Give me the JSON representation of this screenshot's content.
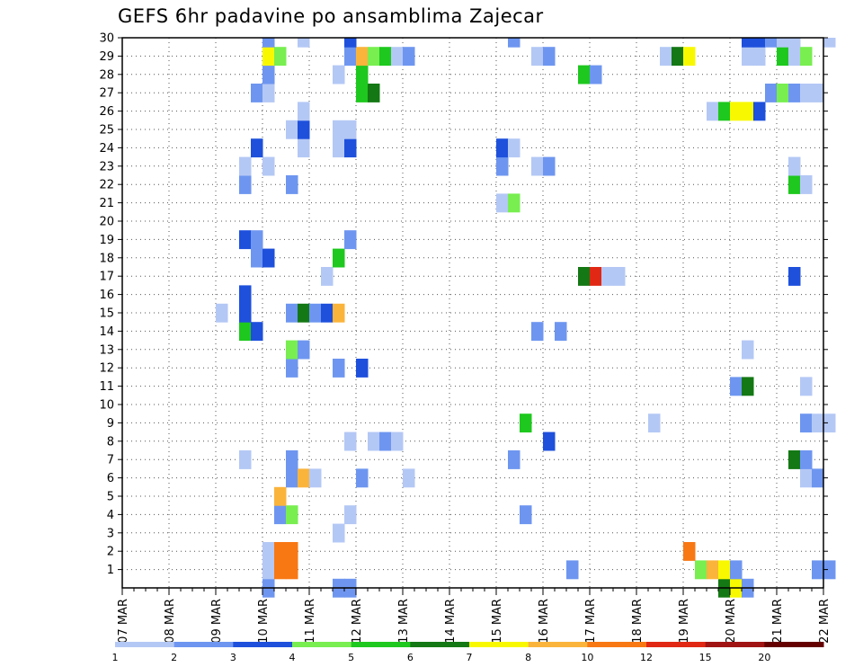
{
  "chart_data": {
    "type": "heatmap",
    "title": "GEFS 6hr padavine po ansamblima Zajecar",
    "x_tick_labels": [
      "07 MAR",
      "08 MAR",
      "09 MAR",
      "10 MAR",
      "11 MAR",
      "12 MAR",
      "13 MAR",
      "14 MAR",
      "15 MAR",
      "16 MAR",
      "17 MAR",
      "18 MAR",
      "19 MAR",
      "20 MAR",
      "21 MAR",
      "22 MAR"
    ],
    "x_range_steps": [
      0,
      60
    ],
    "y_tick_labels": [
      "1",
      "2",
      "3",
      "4",
      "5",
      "6",
      "7",
      "8",
      "9",
      "10",
      "11",
      "12",
      "13",
      "14",
      "15",
      "16",
      "17",
      "18",
      "19",
      "20",
      "21",
      "22",
      "23",
      "24",
      "25",
      "26",
      "27",
      "28",
      "29",
      "30"
    ],
    "y_range": [
      0,
      30
    ],
    "grid": "dotted",
    "colorbar": {
      "colors": [
        "#b4c8f5",
        "#6e96f0",
        "#1e50dc",
        "#78ee50",
        "#1ec81e",
        "#147814",
        "#f8f800",
        "#fab43c",
        "#f87814",
        "#e02814",
        "#a01414",
        "#640000"
      ],
      "labels": [
        "1",
        "2",
        "3",
        "4",
        "5",
        "6",
        "7",
        "8",
        "10",
        "12",
        "15",
        "20"
      ]
    },
    "cells": [
      [
        12,
        0,
        2
      ],
      [
        18,
        0,
        2
      ],
      [
        19,
        0,
        2
      ],
      [
        51,
        0,
        6
      ],
      [
        52,
        0,
        7
      ],
      [
        53,
        0,
        2
      ],
      [
        12,
        1,
        1
      ],
      [
        13,
        1,
        9
      ],
      [
        14,
        1,
        9
      ],
      [
        38,
        1,
        2
      ],
      [
        49,
        1,
        4
      ],
      [
        50,
        1,
        8
      ],
      [
        51,
        1,
        7
      ],
      [
        52,
        1,
        2
      ],
      [
        59,
        1,
        2
      ],
      [
        60,
        1,
        2
      ],
      [
        12,
        2,
        1
      ],
      [
        13,
        2,
        9
      ],
      [
        14,
        2,
        9
      ],
      [
        48,
        2,
        9
      ],
      [
        18,
        3,
        1
      ],
      [
        13,
        4,
        2
      ],
      [
        14,
        4,
        4
      ],
      [
        19,
        4,
        1
      ],
      [
        34,
        4,
        2
      ],
      [
        13,
        5,
        8
      ],
      [
        14,
        6,
        2
      ],
      [
        15,
        6,
        8
      ],
      [
        16,
        6,
        1
      ],
      [
        20,
        6,
        2
      ],
      [
        24,
        6,
        1
      ],
      [
        58,
        6,
        1
      ],
      [
        59,
        6,
        2
      ],
      [
        10,
        7,
        1
      ],
      [
        14,
        7,
        2
      ],
      [
        33,
        7,
        2
      ],
      [
        57,
        7,
        6
      ],
      [
        58,
        7,
        2
      ],
      [
        19,
        8,
        1
      ],
      [
        21,
        8,
        1
      ],
      [
        22,
        8,
        2
      ],
      [
        23,
        8,
        1
      ],
      [
        36,
        8,
        3
      ],
      [
        34,
        9,
        5
      ],
      [
        45,
        9,
        1
      ],
      [
        58,
        9,
        2
      ],
      [
        59,
        9,
        1
      ],
      [
        60,
        9,
        1
      ],
      [
        52,
        11,
        2
      ],
      [
        53,
        11,
        6
      ],
      [
        58,
        11,
        1
      ],
      [
        14,
        12,
        2
      ],
      [
        18,
        12,
        2
      ],
      [
        20,
        12,
        3
      ],
      [
        14,
        13,
        4
      ],
      [
        15,
        13,
        2
      ],
      [
        53,
        13,
        1
      ],
      [
        10,
        14,
        5
      ],
      [
        11,
        14,
        3
      ],
      [
        35,
        14,
        2
      ],
      [
        37,
        14,
        2
      ],
      [
        8,
        15,
        1
      ],
      [
        10,
        15,
        3
      ],
      [
        14,
        15,
        2
      ],
      [
        15,
        15,
        6
      ],
      [
        16,
        15,
        2
      ],
      [
        17,
        15,
        3
      ],
      [
        18,
        15,
        8
      ],
      [
        10,
        16,
        3
      ],
      [
        17,
        17,
        1
      ],
      [
        39,
        17,
        6
      ],
      [
        40,
        17,
        10
      ],
      [
        41,
        17,
        1
      ],
      [
        42,
        17,
        1
      ],
      [
        57,
        17,
        3
      ],
      [
        11,
        18,
        2
      ],
      [
        12,
        18,
        3
      ],
      [
        18,
        18,
        5
      ],
      [
        10,
        19,
        3
      ],
      [
        11,
        19,
        2
      ],
      [
        19,
        19,
        2
      ],
      [
        32,
        21,
        1
      ],
      [
        33,
        21,
        4
      ],
      [
        10,
        22,
        2
      ],
      [
        14,
        22,
        2
      ],
      [
        57,
        22,
        5
      ],
      [
        58,
        22,
        1
      ],
      [
        10,
        23,
        1
      ],
      [
        12,
        23,
        1
      ],
      [
        32,
        23,
        2
      ],
      [
        35,
        23,
        1
      ],
      [
        36,
        23,
        2
      ],
      [
        57,
        23,
        1
      ],
      [
        11,
        24,
        3
      ],
      [
        15,
        24,
        1
      ],
      [
        18,
        24,
        1
      ],
      [
        19,
        24,
        3
      ],
      [
        32,
        24,
        3
      ],
      [
        33,
        24,
        1
      ],
      [
        14,
        25,
        1
      ],
      [
        15,
        25,
        3
      ],
      [
        18,
        25,
        1
      ],
      [
        19,
        25,
        1
      ],
      [
        15,
        26,
        1
      ],
      [
        50,
        26,
        1
      ],
      [
        51,
        26,
        5
      ],
      [
        52,
        26,
        7
      ],
      [
        53,
        26,
        7
      ],
      [
        54,
        26,
        3
      ],
      [
        11,
        27,
        2
      ],
      [
        12,
        27,
        1
      ],
      [
        20,
        27,
        5
      ],
      [
        21,
        27,
        6
      ],
      [
        55,
        27,
        2
      ],
      [
        56,
        27,
        4
      ],
      [
        57,
        27,
        2
      ],
      [
        58,
        27,
        1
      ],
      [
        59,
        27,
        1
      ],
      [
        12,
        28,
        2
      ],
      [
        18,
        28,
        1
      ],
      [
        20,
        28,
        5
      ],
      [
        39,
        28,
        5
      ],
      [
        40,
        28,
        2
      ],
      [
        12,
        29,
        7
      ],
      [
        13,
        29,
        4
      ],
      [
        19,
        29,
        2
      ],
      [
        20,
        29,
        8
      ],
      [
        21,
        29,
        4
      ],
      [
        22,
        29,
        5
      ],
      [
        23,
        29,
        1
      ],
      [
        24,
        29,
        2
      ],
      [
        35,
        29,
        1
      ],
      [
        36,
        29,
        2
      ],
      [
        46,
        29,
        1
      ],
      [
        47,
        29,
        6
      ],
      [
        48,
        29,
        7
      ],
      [
        53,
        29,
        1
      ],
      [
        54,
        29,
        1
      ],
      [
        56,
        29,
        5
      ],
      [
        57,
        29,
        1
      ],
      [
        58,
        29,
        4
      ],
      [
        12,
        30,
        2
      ],
      [
        15,
        30,
        1
      ],
      [
        19,
        30,
        3
      ],
      [
        33,
        30,
        2
      ],
      [
        53,
        30,
        3
      ],
      [
        54,
        30,
        3
      ],
      [
        55,
        30,
        2
      ],
      [
        56,
        30,
        1
      ],
      [
        57,
        30,
        1
      ],
      [
        60,
        30,
        1
      ],
      [
        59,
        31,
        1
      ]
    ]
  }
}
